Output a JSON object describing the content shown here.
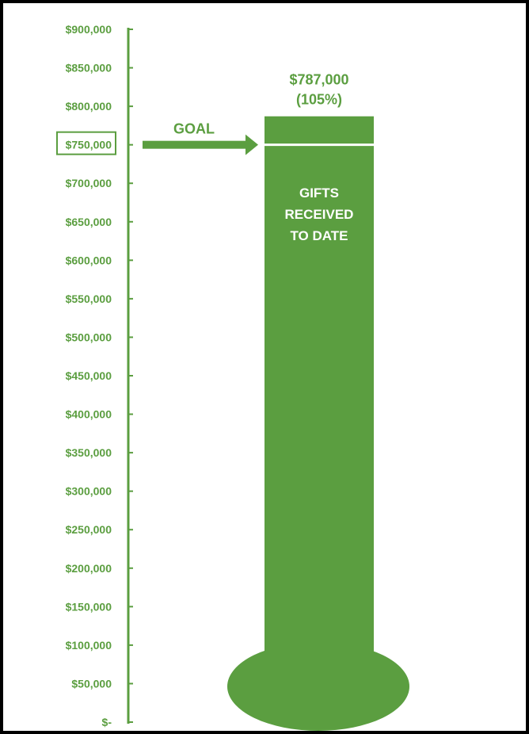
{
  "chart_data": {
    "type": "bar",
    "y_ticks": [
      {
        "value": 0,
        "label": "$-"
      },
      {
        "value": 50000,
        "label": "$50,000"
      },
      {
        "value": 100000,
        "label": "$100,000"
      },
      {
        "value": 150000,
        "label": "$150,000"
      },
      {
        "value": 200000,
        "label": "$200,000"
      },
      {
        "value": 250000,
        "label": "$250,000"
      },
      {
        "value": 300000,
        "label": "$300,000"
      },
      {
        "value": 350000,
        "label": "$350,000"
      },
      {
        "value": 400000,
        "label": "$400,000"
      },
      {
        "value": 450000,
        "label": "$450,000"
      },
      {
        "value": 500000,
        "label": "$500,000"
      },
      {
        "value": 550000,
        "label": "$550,000"
      },
      {
        "value": 600000,
        "label": "$600,000"
      },
      {
        "value": 650000,
        "label": "$650,000"
      },
      {
        "value": 700000,
        "label": "$700,000"
      },
      {
        "value": 750000,
        "label": "$750,000"
      },
      {
        "value": 800000,
        "label": "$800,000"
      },
      {
        "value": 850000,
        "label": "$850,000"
      },
      {
        "value": 900000,
        "label": "$900,000"
      }
    ],
    "ylim": [
      0,
      900000
    ],
    "value": 787000,
    "goal": 750000,
    "value_label": "$787,000",
    "percent_label": "(105%)",
    "goal_label": "GOAL",
    "bar_label_lines": [
      "GIFTS",
      "RECEIVED",
      "TO DATE"
    ],
    "grid": false
  },
  "colors": {
    "green": "#5b9e40",
    "frame": "#000000",
    "marker": "#ffffff"
  }
}
